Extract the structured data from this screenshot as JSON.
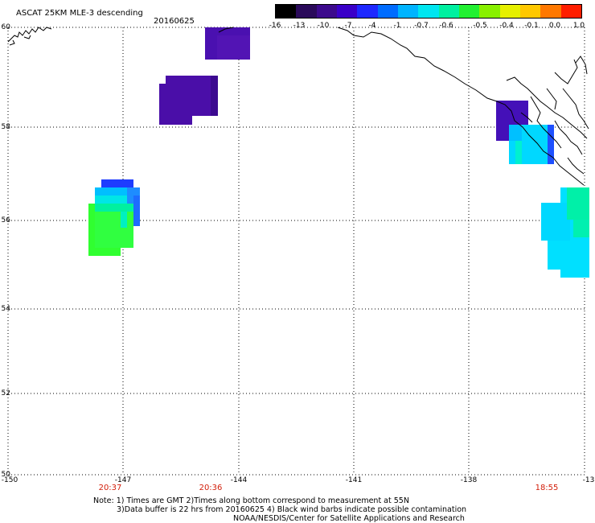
{
  "header": {
    "title": "ASCAT 25KM MLE-3 descending",
    "date": "20160625"
  },
  "colorbar": {
    "ticks": [
      "-16",
      "-13",
      "-10",
      "-7",
      "-4",
      "-1",
      "-0.7",
      "-0.6",
      "-0.5",
      "-0.4",
      "-0.1",
      "0.0",
      "1.0"
    ],
    "colors": [
      "#000000",
      "#2a0a5a",
      "#3c0a8c",
      "#3a00c8",
      "#1e28ff",
      "#006cff",
      "#00b4ff",
      "#00e6f0",
      "#00f0a0",
      "#22f032",
      "#88f000",
      "#e6f000",
      "#ffc800",
      "#ff7800",
      "#ff1e00"
    ]
  },
  "axes": {
    "lat_labels": [
      "60",
      "58",
      "56",
      "54",
      "52",
      "50"
    ],
    "lon_labels": [
      "-150",
      "-147",
      "-144",
      "-141",
      "-138",
      "-13"
    ],
    "grid": true
  },
  "times": [
    "20:37",
    "20:36",
    "18:55"
  ],
  "colors": {
    "time_label": "#d21e0a",
    "purple": "#4a10b0",
    "blue": "#1e3cff",
    "cyan": "#00d8ff",
    "green": "#20ff40"
  },
  "footer": {
    "note1": "Note: 1) Times are GMT 2)Times along bottom correspond to measurement at 55N",
    "note2": "3)Data buffer is 22 hrs from 20160625 4) Black wind barbs indicate possible contamination",
    "credit": "NOAA/NESDIS/Center for Satellite Applications and Research"
  }
}
